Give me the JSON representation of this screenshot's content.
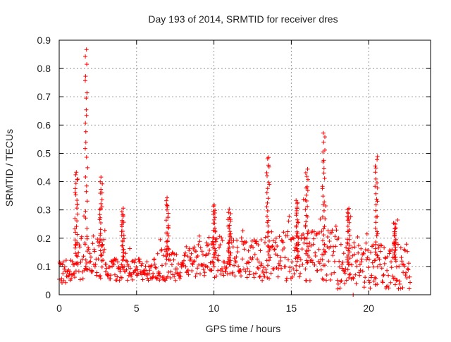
{
  "chart_data": {
    "type": "scatter",
    "title": "Day 193 of 2014, SRMTID for receiver dres",
    "xlabel": "GPS time / hours",
    "ylabel": "SRMTID / TECUs",
    "xlim": [
      0,
      24
    ],
    "ylim": [
      0,
      0.9
    ],
    "xticks": [
      0,
      5,
      10,
      15,
      20
    ],
    "yticks": [
      0,
      0.1,
      0.2,
      0.3,
      0.4,
      0.5,
      0.6,
      0.7,
      0.8,
      0.9
    ],
    "grid": true,
    "legend": "none",
    "marker": "+",
    "series": [
      {
        "name": "SRMTID",
        "color": "#ff0000",
        "data_description": "dense time series sampled every ~0.05 h from 0 to 22.7 h",
        "baseline_ranges": [
          {
            "x_from": 0.0,
            "x_to": 1.0,
            "y_min": 0.04,
            "y_max": 0.18
          },
          {
            "x_from": 1.0,
            "x_to": 3.0,
            "y_min": 0.05,
            "y_max": 0.3
          },
          {
            "x_from": 3.0,
            "x_to": 6.5,
            "y_min": 0.05,
            "y_max": 0.18
          },
          {
            "x_from": 6.5,
            "x_to": 9.5,
            "y_min": 0.05,
            "y_max": 0.25
          },
          {
            "x_from": 9.5,
            "x_to": 13.0,
            "y_min": 0.06,
            "y_max": 0.3
          },
          {
            "x_from": 13.0,
            "x_to": 18.0,
            "y_min": 0.05,
            "y_max": 0.35
          },
          {
            "x_from": 18.0,
            "x_to": 22.7,
            "y_min": 0.02,
            "y_max": 0.3
          }
        ],
        "peaks": [
          {
            "x": 1.1,
            "y": 0.44
          },
          {
            "x": 1.75,
            "y": 0.87
          },
          {
            "x": 2.7,
            "y": 0.41
          },
          {
            "x": 4.1,
            "y": 0.3
          },
          {
            "x": 7.0,
            "y": 0.34
          },
          {
            "x": 10.0,
            "y": 0.32
          },
          {
            "x": 11.0,
            "y": 0.3
          },
          {
            "x": 13.5,
            "y": 0.49
          },
          {
            "x": 15.4,
            "y": 0.34
          },
          {
            "x": 16.0,
            "y": 0.44
          },
          {
            "x": 17.1,
            "y": 0.57
          },
          {
            "x": 18.7,
            "y": 0.31
          },
          {
            "x": 20.5,
            "y": 0.49
          },
          {
            "x": 21.7,
            "y": 0.26
          }
        ],
        "minimum": {
          "x": 19.0,
          "y": 0.0
        }
      }
    ]
  }
}
